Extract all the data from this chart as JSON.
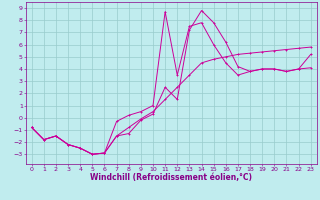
{
  "title": "",
  "xlabel": "Windchill (Refroidissement éolien,°C)",
  "bg_color": "#c0ecee",
  "grid_color": "#99cccc",
  "line_color": "#cc0099",
  "xlim": [
    -0.5,
    23.5
  ],
  "ylim": [
    -3.8,
    9.5
  ],
  "xticks": [
    0,
    1,
    2,
    3,
    4,
    5,
    6,
    7,
    8,
    9,
    10,
    11,
    12,
    13,
    14,
    15,
    16,
    17,
    18,
    19,
    20,
    21,
    22,
    23
  ],
  "yticks": [
    -3,
    -2,
    -1,
    0,
    1,
    2,
    3,
    4,
    5,
    6,
    7,
    8,
    9
  ],
  "line1_x": [
    0,
    1,
    2,
    3,
    4,
    5,
    6,
    7,
    8,
    9,
    10,
    11,
    12,
    13,
    14,
    15,
    16,
    17,
    18,
    19,
    20,
    21,
    22,
    23
  ],
  "line1_y": [
    -0.8,
    -1.8,
    -1.5,
    -2.2,
    -2.5,
    -3.0,
    -2.9,
    -1.5,
    -1.3,
    -0.2,
    0.3,
    2.5,
    1.5,
    7.2,
    8.8,
    7.8,
    6.2,
    4.2,
    3.8,
    4.0,
    4.0,
    3.8,
    4.0,
    4.1
  ],
  "line2_x": [
    0,
    1,
    2,
    3,
    4,
    5,
    6,
    7,
    8,
    9,
    10,
    11,
    12,
    13,
    14,
    15,
    16,
    17,
    18,
    19,
    20,
    21,
    22,
    23
  ],
  "line2_y": [
    -0.8,
    -1.8,
    -1.5,
    -2.2,
    -2.5,
    -3.0,
    -2.9,
    -0.3,
    0.2,
    0.5,
    1.0,
    8.7,
    3.5,
    7.5,
    7.8,
    6.0,
    4.5,
    3.5,
    3.8,
    4.0,
    4.0,
    3.8,
    4.0,
    5.2
  ],
  "line3_x": [
    0,
    1,
    2,
    3,
    4,
    5,
    6,
    7,
    8,
    9,
    10,
    11,
    12,
    13,
    14,
    15,
    16,
    17,
    18,
    19,
    20,
    21,
    22,
    23
  ],
  "line3_y": [
    -0.8,
    -1.8,
    -1.5,
    -2.2,
    -2.5,
    -3.0,
    -2.9,
    -1.5,
    -0.8,
    -0.1,
    0.5,
    1.5,
    2.5,
    3.5,
    4.5,
    4.8,
    5.0,
    5.2,
    5.3,
    5.4,
    5.5,
    5.6,
    5.7,
    5.8
  ],
  "font_color": "#880088",
  "tick_fontsize": 4.5,
  "label_fontsize": 5.5
}
